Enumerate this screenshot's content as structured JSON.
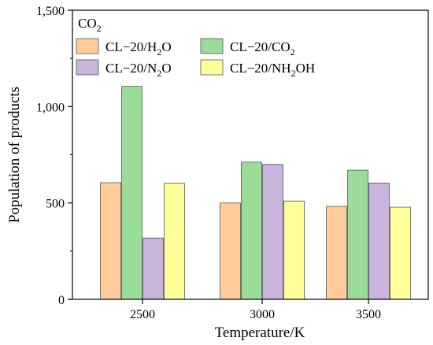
{
  "chart_data": {
    "type": "bar",
    "title": "",
    "xlabel": "Temperature/K",
    "ylabel": "Population of products",
    "ylim": [
      0,
      1500
    ],
    "yticks": [
      0,
      500,
      1000,
      1500
    ],
    "ytick_labels": [
      "0",
      "500",
      "1,000",
      "1,500"
    ],
    "categories": [
      "2500",
      "3000",
      "3500"
    ],
    "legend": {
      "title": {
        "main": "CO",
        "sub": "2"
      },
      "placement": "top-left"
    },
    "series": [
      {
        "name": "CL−20/H₂O",
        "label_parts": [
          "CL−20/H",
          "2",
          "O"
        ],
        "color": "#ffcc99",
        "values": [
          605,
          500,
          482
        ]
      },
      {
        "name": "CL−20/CO₂",
        "label_parts": [
          "CL−20/CO",
          "2",
          ""
        ],
        "color": "#99dd99",
        "values": [
          1105,
          712,
          670
        ]
      },
      {
        "name": "CL−20/N₂O",
        "label_parts": [
          "CL−20/N",
          "2",
          "O"
        ],
        "color": "#c8b4dc",
        "values": [
          318,
          700,
          603
        ]
      },
      {
        "name": "CL−20/NH₂OH",
        "label_parts": [
          "CL−20/NH",
          "2",
          "OH"
        ],
        "color": "#ffff99",
        "values": [
          602,
          510,
          478
        ]
      }
    ]
  }
}
